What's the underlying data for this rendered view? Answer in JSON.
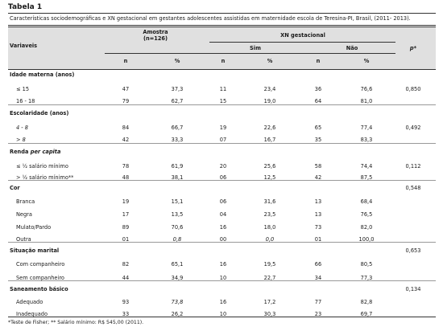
{
  "table_title": "Tabela 1",
  "caption": "Características sociodemográficas e XN gestacional em gestantes adolescentes assistidas em maternidade escola de Teresina-PI, Brasil, (2011- 2013).",
  "header": {
    "variaveis": "Variaveis",
    "amostra": "Amostra",
    "amostra_n": "(n=126)",
    "xn": "XN gestacional",
    "sim": "Sim",
    "nao": "Não",
    "p": "p*",
    "n": "n",
    "pct": "%"
  },
  "groups": [
    {
      "label": "Idade materna (anos)",
      "label_plain": "Idade materna (anos)",
      "p": "",
      "rows": [
        {
          "label": "≤ 15",
          "n": "47",
          "pct": "37,3",
          "sim_n": "11",
          "sim_pct": "23,4",
          "nao_n": "36",
          "nao_pct": "76,6",
          "p": "0,850"
        },
        {
          "label": "16 - 18",
          "n": "79",
          "pct": "62,7",
          "sim_n": "15",
          "sim_pct": "19,0",
          "nao_n": "64",
          "nao_pct": "81,0",
          "p": ""
        }
      ]
    },
    {
      "label": "Escolaridade (anos)",
      "p": "",
      "rows": [
        {
          "label": "4 - 8",
          "n": "84",
          "pct": "66,7",
          "sim_n": "19",
          "sim_pct": "22,6",
          "nao_n": "65",
          "nao_pct": "77,4",
          "p": "0,492"
        },
        {
          "label": "> 8",
          "n": "42",
          "pct": "33,3",
          "sim_n": "07",
          "sim_pct": "16,7",
          "nao_n": "35",
          "nao_pct": "83,3",
          "p": ""
        }
      ]
    },
    {
      "label": "Renda per capita",
      "p": "",
      "rows": [
        {
          "label": "≤ ½ salário mínimo",
          "n": "78",
          "pct": "61,9",
          "sim_n": "20",
          "sim_pct": "25,6",
          "nao_n": "58",
          "nao_pct": "74,4",
          "p": "0,112"
        },
        {
          "label": "> ½ salário mínimo**",
          "n": "48",
          "pct": "38,1",
          "sim_n": "06",
          "sim_pct": "12,5",
          "nao_n": "42",
          "nao_pct": "87,5",
          "p": ""
        }
      ]
    },
    {
      "label": "Cor",
      "p": "0,548",
      "rows": [
        {
          "label": "Branca",
          "n": "19",
          "pct": "15,1",
          "sim_n": "06",
          "sim_pct": "31,6",
          "nao_n": "13",
          "nao_pct": "68,4",
          "p": ""
        },
        {
          "label": "Negra",
          "n": "17",
          "pct": "13,5",
          "sim_n": "04",
          "sim_pct": "23,5",
          "nao_n": "13",
          "nao_pct": "76,5",
          "p": ""
        },
        {
          "label": "Mulato/Pardo",
          "n": "89",
          "pct": "70,6",
          "sim_n": "16",
          "sim_pct": "18,0",
          "nao_n": "73",
          "nao_pct": "82,0",
          "p": ""
        },
        {
          "label": "Outra",
          "n": "01",
          "pct": "0,8",
          "sim_n": "00",
          "sim_pct": "0,0",
          "nao_n": "01",
          "nao_pct": "100,0",
          "p": ""
        }
      ]
    },
    {
      "label": "Situação marital",
      "p": "0,653",
      "rows": [
        {
          "label": "Com companheiro",
          "n": "82",
          "pct": "65,1",
          "sim_n": "16",
          "sim_pct": "19,5",
          "nao_n": "66",
          "nao_pct": "80,5",
          "p": ""
        },
        {
          "label": "Sem companheiro",
          "n": "44",
          "pct": "34,9",
          "sim_n": "10",
          "sim_pct": "22,7",
          "nao_n": "34",
          "nao_pct": "77,3",
          "p": ""
        }
      ]
    },
    {
      "label": "Saneamento básico",
      "p": "0,134",
      "rows": [
        {
          "label": "Adequado",
          "n": "93",
          "pct": "73,8",
          "sim_n": "16",
          "sim_pct": "17,2",
          "nao_n": "77",
          "nao_pct": "82,8",
          "p": ""
        },
        {
          "label": "Inadequado",
          "n": "33",
          "pct": "26,2",
          "sim_n": "10",
          "sim_pct": "30,3",
          "nao_n": "23",
          "nao_pct": "69,7",
          "p": ""
        }
      ]
    }
  ],
  "footnote": "*Teste de Fisher; ** Salário mínimo: R$ 545,00 (2011)."
}
